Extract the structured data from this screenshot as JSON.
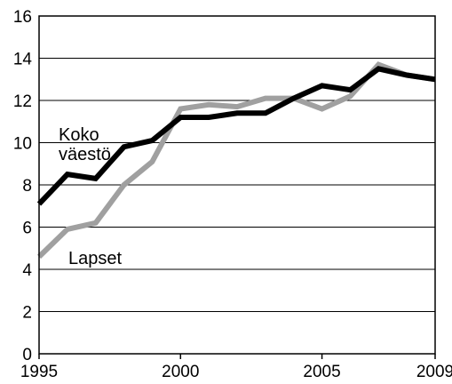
{
  "chart_data": {
    "type": "line",
    "title": "",
    "xlabel": "",
    "ylabel": "",
    "xlim": [
      1995,
      2009
    ],
    "ylim": [
      0,
      16
    ],
    "x_ticks": [
      1995,
      2000,
      2005,
      2009
    ],
    "y_ticks": [
      0,
      2,
      4,
      6,
      8,
      10,
      12,
      14,
      16
    ],
    "grid": "horizontal",
    "legend": "none (labels placed next to lines)",
    "series": [
      {
        "name": "Lapset",
        "color": "#a0a0a0",
        "x": [
          1995,
          1996,
          1997,
          1998,
          1999,
          2000,
          2001,
          2002,
          2003,
          2004,
          2005,
          2006,
          2007,
          2008,
          2009
        ],
        "values": [
          4.6,
          5.9,
          6.2,
          8.0,
          9.1,
          11.6,
          11.8,
          11.7,
          12.1,
          12.1,
          11.6,
          12.2,
          13.7,
          13.2,
          13.0
        ]
      },
      {
        "name": "Koko väestö",
        "color": "#000000",
        "x": [
          1995,
          1996,
          1997,
          1998,
          1999,
          2000,
          2001,
          2002,
          2003,
          2004,
          2005,
          2006,
          2007,
          2008,
          2009
        ],
        "values": [
          7.1,
          8.5,
          8.3,
          9.8,
          10.1,
          11.2,
          11.2,
          11.4,
          11.4,
          12.1,
          12.7,
          12.5,
          13.5,
          13.2,
          13.0
        ]
      }
    ],
    "annotations": [
      {
        "series": "Koko väestö",
        "lines": [
          "Koko",
          "väestö"
        ]
      },
      {
        "series": "Lapset",
        "lines": [
          "Lapset"
        ]
      }
    ]
  }
}
